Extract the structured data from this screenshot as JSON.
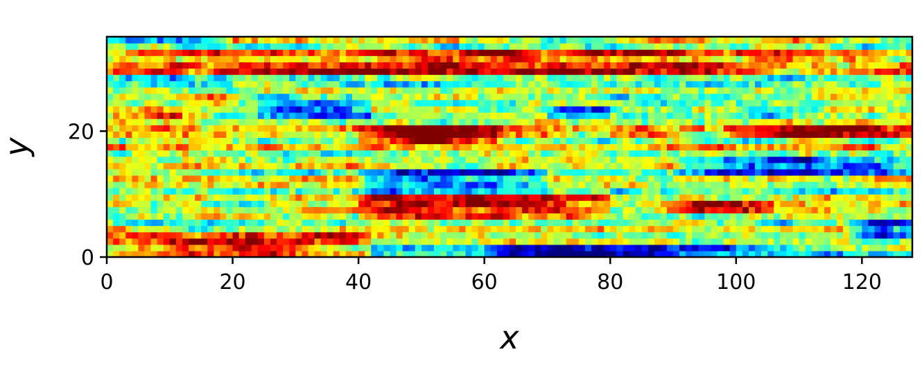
{
  "chart_data": {
    "type": "heatmap",
    "title": "",
    "xlabel": "x",
    "ylabel": "y",
    "xlim": [
      0,
      128
    ],
    "ylim": [
      0,
      35
    ],
    "x_ticks": [
      0,
      20,
      40,
      60,
      80,
      100,
      120
    ],
    "y_ticks": [
      0,
      20
    ],
    "colormap": "jet",
    "grid": false,
    "legend": "none",
    "colorbar": false,
    "data": {
      "nx": 128,
      "ny": 35,
      "value_range": [
        0,
        1
      ],
      "field": "noisy streamwise-elongated streaks; continuous values in [0,1] mapped through jet colormap",
      "rows_low_high": [
        {
          "y_range": [
            0,
            4
          ],
          "x_range": [
            0,
            42
          ],
          "level": "high"
        },
        {
          "y_range": [
            0,
            2
          ],
          "x_range": [
            60,
            100
          ],
          "level": "low"
        },
        {
          "y_range": [
            2,
            6
          ],
          "x_range": [
            118,
            128
          ],
          "level": "low"
        },
        {
          "y_range": [
            6,
            10
          ],
          "x_range": [
            40,
            80
          ],
          "level": "high"
        },
        {
          "y_range": [
            7,
            9
          ],
          "x_range": [
            88,
            106
          ],
          "level": "high"
        },
        {
          "y_range": [
            11,
            14
          ],
          "x_range": [
            40,
            70
          ],
          "level": "low"
        },
        {
          "y_range": [
            13,
            16
          ],
          "x_range": [
            90,
            128
          ],
          "level": "low"
        },
        {
          "y_range": [
            18,
            21
          ],
          "x_range": [
            40,
            62
          ],
          "level": "high"
        },
        {
          "y_range": [
            19,
            21
          ],
          "x_range": [
            98,
            128
          ],
          "level": "high"
        },
        {
          "y_range": [
            22,
            25
          ],
          "x_range": [
            24,
            42
          ],
          "level": "low"
        },
        {
          "y_range": [
            22,
            24
          ],
          "x_range": [
            70,
            80
          ],
          "level": "low"
        },
        {
          "y_range": [
            22,
            24
          ],
          "x_range": [
            0,
            12
          ],
          "level": "high"
        },
        {
          "y_range": [
            29,
            33
          ],
          "x_range": [
            0,
            128
          ],
          "level": "high"
        },
        {
          "y_range": [
            34,
            35
          ],
          "x_range": [
            0,
            20
          ],
          "level": "low"
        }
      ]
    }
  }
}
